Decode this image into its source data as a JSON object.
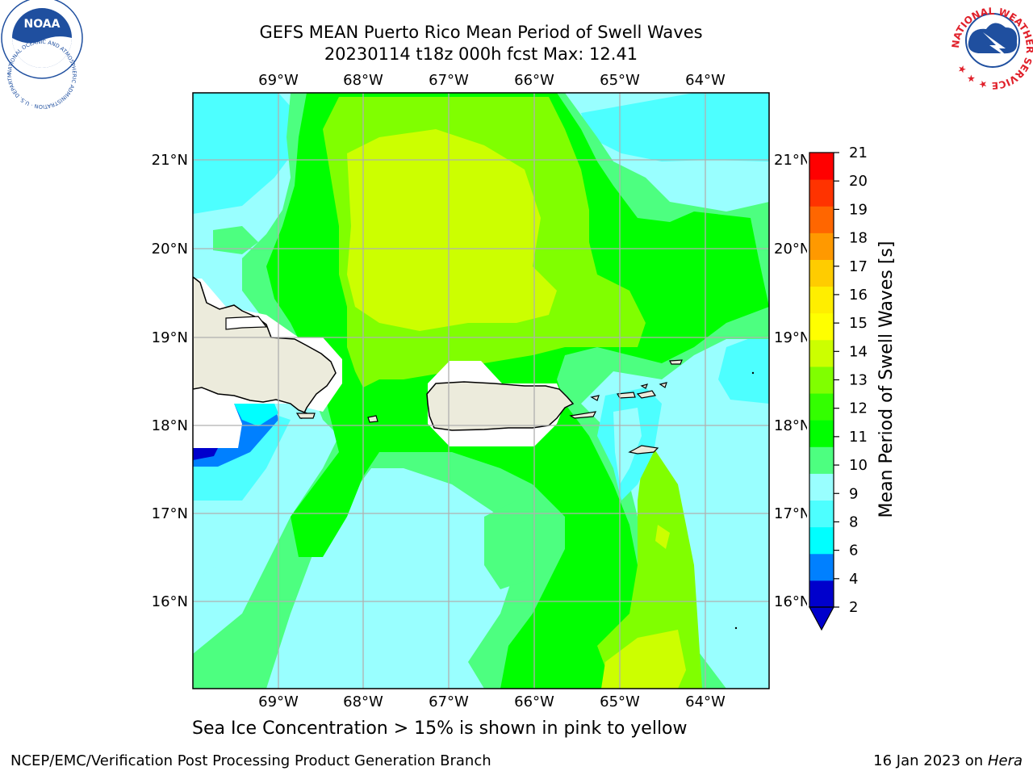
{
  "header": {
    "title_line1": "GEFS MEAN Puerto Rico Mean Period of Swell Waves",
    "title_line2": "20230114 t18z 000h fcst   Max: 12.41"
  },
  "map": {
    "lon_labels": [
      "69°W",
      "68°W",
      "67°W",
      "66°W",
      "65°W",
      "64°W"
    ],
    "lat_labels": [
      "21°N",
      "20°N",
      "19°N",
      "18°N",
      "17°N",
      "16°N"
    ],
    "land_color": "#ecebdc",
    "grid_color": "#b0b0b0"
  },
  "colorbar": {
    "label": "Mean Period of Swell Waves [s]",
    "ticks": [
      "21",
      "20",
      "19",
      "18",
      "17",
      "16",
      "15",
      "14",
      "13",
      "12",
      "11",
      "10",
      "9",
      "8",
      "6",
      "4",
      "2"
    ],
    "colors": [
      "#0000cc",
      "#0080ff",
      "#00ffff",
      "#4dffff",
      "#99ffff",
      "#4dff80",
      "#00ff00",
      "#33ff00",
      "#80ff00",
      "#ccff00",
      "#ffff00",
      "#ffee00",
      "#ffcc00",
      "#ff9900",
      "#ff6600",
      "#ff3300",
      "#ff0000"
    ],
    "under_color": "#0000cc"
  },
  "footer": {
    "subtitle": "Sea Ice Concentration > 15% is shown in pink to yellow",
    "credit": "NCEP/EMC/Verification Post Processing Product Generation Branch",
    "date": "16 Jan 2023 on",
    "machine": "Hera"
  },
  "logos": {
    "noaa_text": "NOAA",
    "noaa_ring_text": "NATIONAL OCEANIC AND ATMOSPHERIC ADMINISTRATION · U.S. DEPARTMENT OF COMMERCE ·",
    "nws_ring_text": "NATIONAL WEATHER SERVICE ★ ★ ★",
    "noaa_blue": "#1f4f9f",
    "nws_red": "#e0202a"
  }
}
